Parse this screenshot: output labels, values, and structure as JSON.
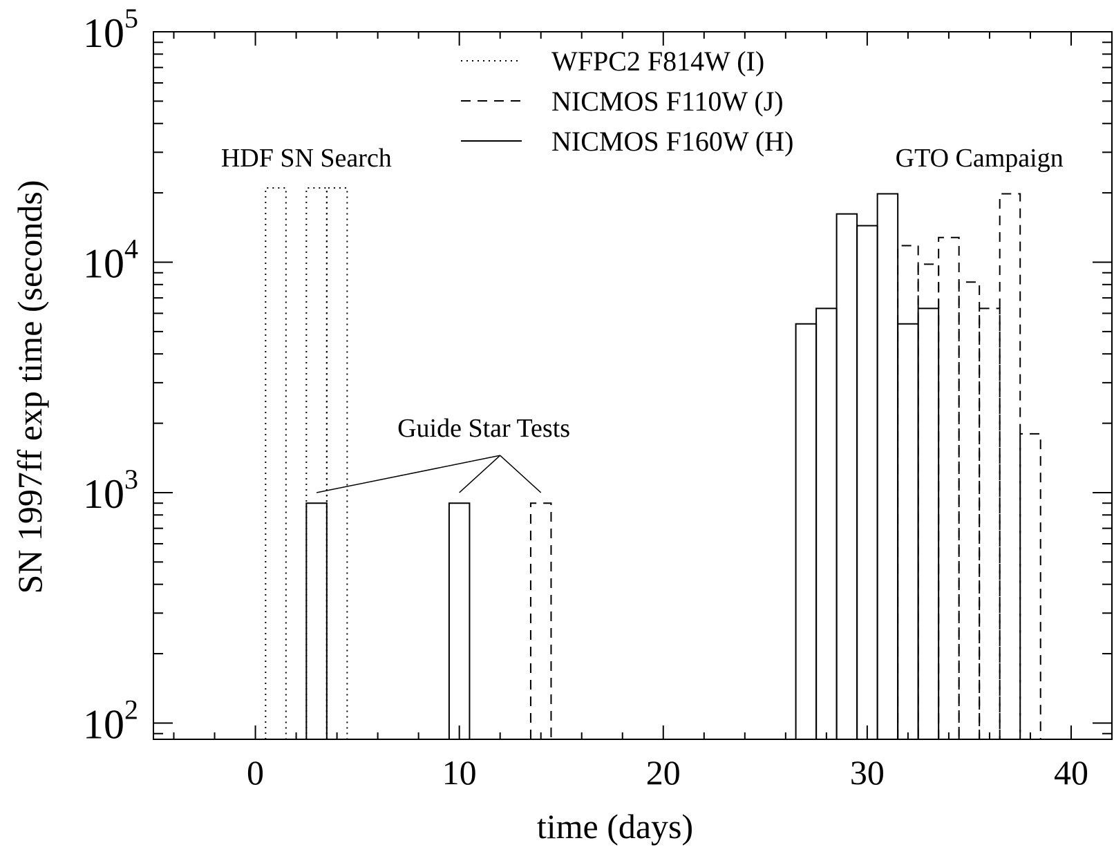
{
  "chart_data": {
    "type": "line",
    "title": "",
    "xlabel": "time (days)",
    "ylabel": "SN 1997ff exp time (seconds)",
    "xlim": [
      -5,
      42
    ],
    "ylim": [
      85,
      100000
    ],
    "yscale": "log",
    "grid": false,
    "legend_position": "top-center",
    "x_ticks": [
      0,
      10,
      20,
      30,
      40
    ],
    "x_tick_labels": [
      "0",
      "10",
      "20",
      "30",
      "40"
    ],
    "y_ticks": [
      100,
      1000,
      10000,
      100000
    ],
    "y_tick_labels": [
      {
        "base": "10",
        "exp": "2"
      },
      {
        "base": "10",
        "exp": "3"
      },
      {
        "base": "10",
        "exp": "4"
      },
      {
        "base": "10",
        "exp": "5"
      }
    ],
    "series": [
      {
        "name": "WFPC2 F814W (I)",
        "style": "dotted",
        "bars": [
          {
            "x0": 0.5,
            "x1": 1.5,
            "y": 21000
          },
          {
            "x0": 2.5,
            "x1": 3.5,
            "y": 21000
          },
          {
            "x0": 3.5,
            "x1": 4.5,
            "y": 21000
          }
        ]
      },
      {
        "name": "NICMOS F110W (J)",
        "style": "dashed",
        "bars": [
          {
            "x0": 13.5,
            "x1": 14.5,
            "y": 900
          },
          {
            "x0": 31.5,
            "x1": 32.5,
            "y": 11800
          },
          {
            "x0": 32.5,
            "x1": 33.5,
            "y": 9800
          },
          {
            "x0": 33.5,
            "x1": 34.5,
            "y": 12800
          },
          {
            "x0": 34.5,
            "x1": 35.5,
            "y": 8200
          },
          {
            "x0": 35.5,
            "x1": 36.5,
            "y": 6300
          },
          {
            "x0": 36.5,
            "x1": 37.5,
            "y": 19800
          },
          {
            "x0": 37.5,
            "x1": 38.5,
            "y": 1800
          }
        ]
      },
      {
        "name": "NICMOS F160W (H)",
        "style": "solid",
        "bars": [
          {
            "x0": 2.5,
            "x1": 3.5,
            "y": 900
          },
          {
            "x0": 9.5,
            "x1": 10.5,
            "y": 900
          },
          {
            "x0": 26.5,
            "x1": 27.5,
            "y": 5400
          },
          {
            "x0": 27.5,
            "x1": 28.5,
            "y": 6300
          },
          {
            "x0": 28.5,
            "x1": 29.5,
            "y": 16200
          },
          {
            "x0": 29.5,
            "x1": 30.5,
            "y": 14400
          },
          {
            "x0": 30.5,
            "x1": 31.5,
            "y": 19800
          },
          {
            "x0": 31.5,
            "x1": 32.5,
            "y": 5400
          },
          {
            "x0": 32.5,
            "x1": 33.5,
            "y": 6300
          }
        ]
      }
    ],
    "annotations": [
      {
        "text": "HDF SN Search",
        "x": 2.5,
        "y": 26000
      },
      {
        "text": "GTO Campaign",
        "x": 35.5,
        "y": 26000
      },
      {
        "text": "Guide Star Tests",
        "x": 11.2,
        "y": 1750,
        "pointer_from": {
          "x": 12.0,
          "y": 1450
        },
        "pointer_to": [
          {
            "x": 3.0,
            "y": 1000
          },
          {
            "x": 10.0,
            "y": 1000
          },
          {
            "x": 14.0,
            "y": 1000
          }
        ]
      }
    ]
  }
}
